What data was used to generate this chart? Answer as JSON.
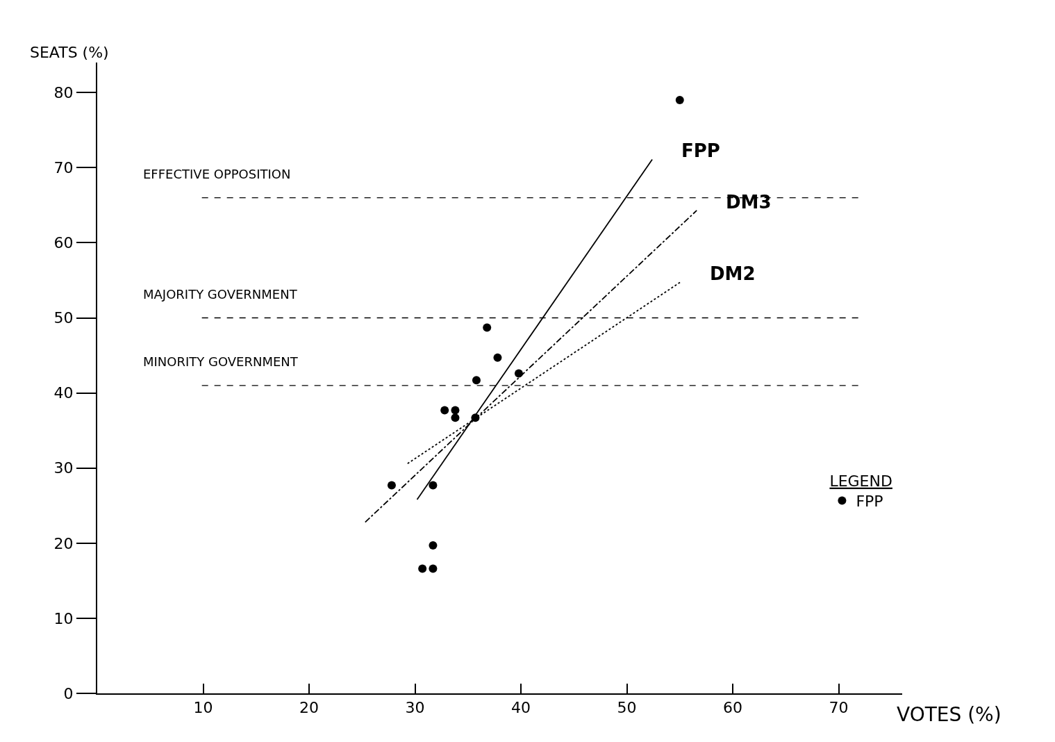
{
  "chart_data": {
    "type": "scatter",
    "xlabel": "VOTES (%)",
    "ylabel": "SEATS (%)",
    "legend_title": "LEGEND",
    "legend": "right",
    "xlim": [
      0,
      76
    ],
    "xticks": [
      10,
      20,
      30,
      40,
      50,
      60,
      70
    ],
    "ylim": [
      0,
      84
    ],
    "yticks": [
      0,
      10,
      20,
      30,
      40,
      50,
      60,
      70,
      80
    ],
    "series": [
      {
        "name": "FPP",
        "marker": "circle",
        "color": "#000000",
        "x": [
          55.0,
          36.8,
          37.8,
          39.8,
          35.8,
          32.8,
          33.8,
          33.8,
          35.7,
          27.8,
          31.7,
          31.7,
          30.7,
          31.7
        ],
        "values": [
          79.0,
          48.7,
          44.7,
          42.6,
          41.7,
          37.7,
          37.7,
          36.7,
          36.7,
          27.7,
          27.7,
          19.7,
          16.6,
          16.6
        ]
      },
      {
        "name": "FPP",
        "type": "line",
        "marker": "none",
        "line_style": "solid",
        "color": "#000000",
        "x": [
          30.2,
          52.4
        ],
        "values": [
          25.8,
          71.1
        ]
      },
      {
        "name": "DM3",
        "type": "line",
        "marker": "none",
        "line_style": "dashdot",
        "color": "#000000",
        "x": [
          25.3,
          56.6
        ],
        "values": [
          22.8,
          64.3
        ]
      },
      {
        "name": "DM2",
        "type": "line",
        "marker": "none",
        "line_style": "dotted",
        "color": "#000000",
        "x": [
          29.3,
          55.1
        ],
        "values": [
          30.6,
          54.8
        ]
      }
    ],
    "ref_lines": [
      {
        "axis": "y",
        "value": 66,
        "label": "EFFECTIVE OPPOSITION",
        "line_style": "dashed",
        "color": "#000000"
      },
      {
        "axis": "y",
        "value": 50,
        "label": "MAJORITY GOVERNMENT",
        "line_style": "dashed",
        "color": "#000000"
      },
      {
        "axis": "y",
        "value": 41,
        "label": "MINORITY GOVERNMENT",
        "line_style": "dashed",
        "color": "#000000"
      }
    ]
  }
}
